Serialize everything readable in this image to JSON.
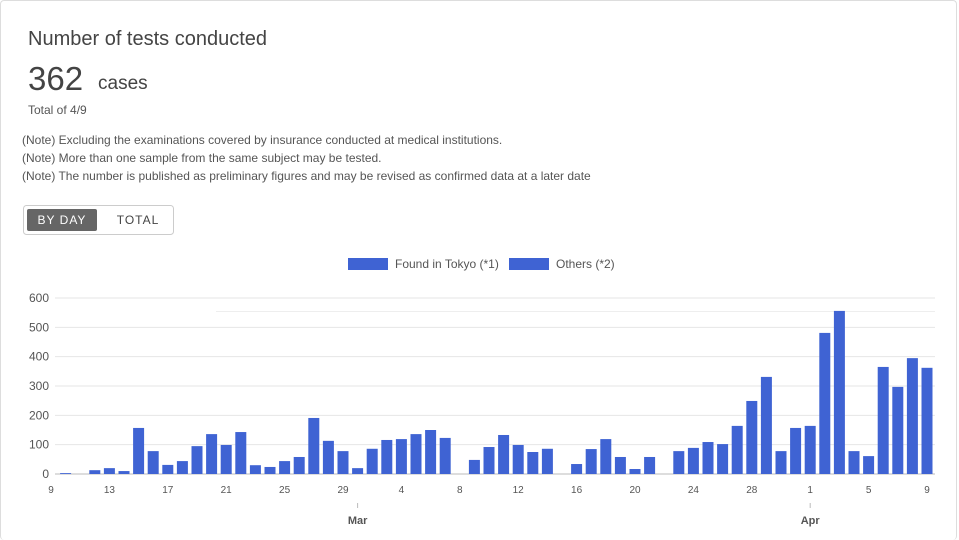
{
  "header": {
    "title": "Number of tests conducted",
    "value": "362",
    "unit": "cases",
    "date": "Total of 4/9",
    "notes": [
      "(Note) Excluding the examinations covered by insurance conducted at medical institutions.",
      "(Note) More than one sample from the same subject may be tested.",
      "(Note) The number is published as preliminary figures and may be revised as confirmed data at a later date"
    ],
    "buttons": [
      "BY DAY",
      "TOTAL"
    ]
  },
  "chart_data": {
    "type": "bar",
    "stacked": true,
    "categories": [
      "9",
      null,
      null,
      null,
      "13",
      null,
      null,
      null,
      "17",
      null,
      null,
      null,
      "21",
      null,
      null,
      null,
      "25",
      null,
      null,
      null,
      "29",
      null,
      null,
      null,
      "4",
      null,
      null,
      null,
      "8",
      null,
      null,
      null,
      "12",
      null,
      null,
      null,
      "16",
      null,
      null,
      null,
      "20",
      null,
      null,
      null,
      "24",
      null,
      null,
      null,
      "28",
      null,
      null,
      null,
      "1",
      null,
      null,
      null,
      "5",
      null,
      null,
      null,
      "9"
    ],
    "month_ticks": [
      {
        "value": 21,
        "label": "Mar"
      },
      {
        "value": 52,
        "label": "Apr"
      }
    ],
    "series": [
      {
        "name": "Found in Tokyo (*1)",
        "color": "#3f63d3",
        "values": [
          0,
          0,
          0,
          0,
          0,
          0,
          0,
          0,
          0,
          0,
          0,
          0,
          0,
          0,
          0,
          0,
          0,
          0,
          0,
          0,
          0,
          0,
          0,
          0,
          0,
          0,
          0,
          0,
          0,
          0,
          0,
          0,
          0,
          0,
          0,
          0,
          0,
          0,
          0,
          0,
          0,
          0,
          0,
          0,
          0,
          0,
          0,
          0,
          0,
          0,
          0,
          0,
          0,
          0,
          0,
          0,
          0,
          0,
          0,
          0,
          0
        ]
      },
      {
        "name": "Others (*2)",
        "color": "#3f63d3",
        "values": [
          0,
          3,
          0,
          13,
          20,
          10,
          157,
          78,
          31,
          44,
          95,
          136,
          99,
          143,
          30,
          24,
          44,
          58,
          191,
          113,
          78,
          20,
          86,
          116,
          119,
          136,
          150,
          123,
          0,
          48,
          92,
          133,
          99,
          75,
          86,
          0,
          34,
          85,
          119,
          58,
          17,
          58,
          0,
          78,
          89,
          109,
          102,
          164,
          249,
          331,
          78,
          157,
          164,
          481,
          556,
          78,
          61,
          365,
          297,
          395,
          362
        ]
      }
    ],
    "ylim": [
      0,
      600
    ],
    "yticks": [
      0,
      100,
      200,
      300,
      400,
      500,
      600
    ],
    "grid": true
  }
}
